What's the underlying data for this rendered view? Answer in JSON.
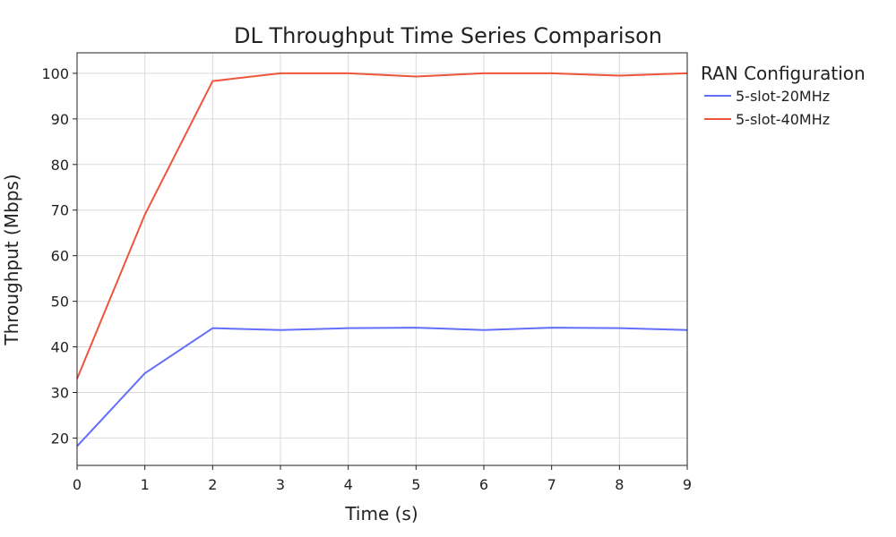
{
  "chart_data": {
    "type": "line",
    "title": "DL Throughput Time Series Comparison",
    "xlabel": "Time (s)",
    "ylabel": "Throughput (Mbps)",
    "x": [
      0,
      1,
      2,
      3,
      4,
      5,
      6,
      7,
      8,
      9
    ],
    "xlim": [
      0,
      9
    ],
    "ylim": [
      14,
      104.5
    ],
    "xticks": [
      0,
      1,
      2,
      3,
      4,
      5,
      6,
      7,
      8,
      9
    ],
    "yticks": [
      20,
      30,
      40,
      50,
      60,
      70,
      80,
      90,
      100
    ],
    "grid": true,
    "legend": {
      "title": "RAN Configuration",
      "placement": "outside-right"
    },
    "series": [
      {
        "name": "5-slot-20MHz",
        "color": "#636efa",
        "values": [
          18.2,
          34.2,
          44.1,
          43.7,
          44.1,
          44.2,
          43.7,
          44.2,
          44.1,
          43.7
        ]
      },
      {
        "name": "5-slot-40MHz",
        "color": "#ef553b",
        "values": [
          33.0,
          69.0,
          98.3,
          100.0,
          100.0,
          99.3,
          100.0,
          100.0,
          99.5,
          100.0
        ]
      }
    ]
  }
}
